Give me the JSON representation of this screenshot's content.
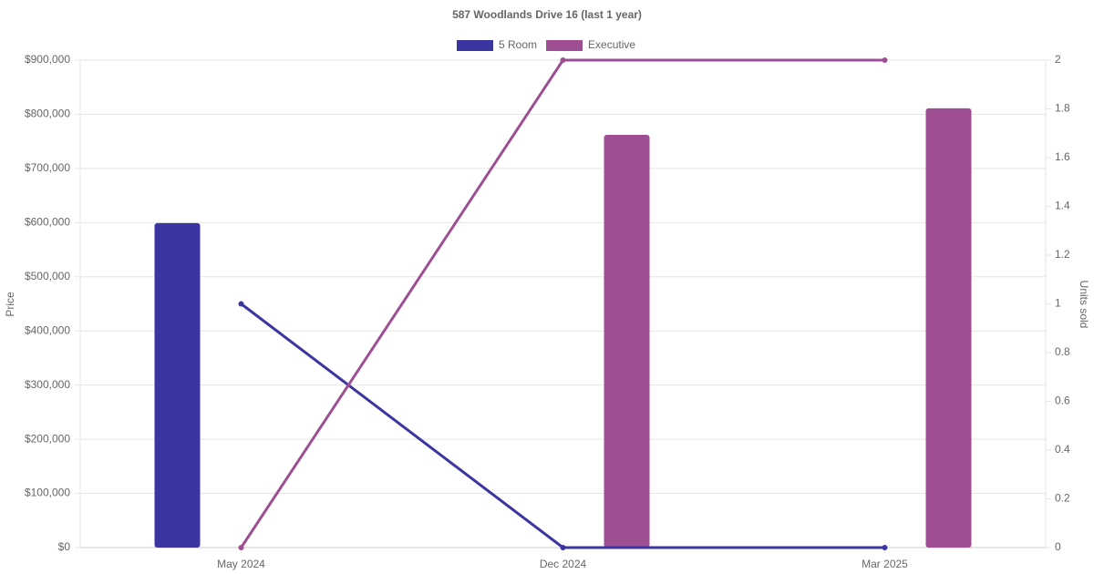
{
  "chart_data": {
    "type": "bar-line",
    "title": "587 Woodlands Drive 16 (last 1 year)",
    "y_label": "Price",
    "y2_label": "Units sold",
    "categories": [
      "May 2024",
      "Dec 2024",
      "Mar 2025"
    ],
    "series": [
      {
        "name": "5 Room",
        "color": "#3a35a0",
        "values": [
          599000,
          null,
          null
        ],
        "units_sold": [
          1,
          0,
          0
        ]
      },
      {
        "name": "Executive",
        "color": "#9e4f94",
        "values": [
          null,
          762000,
          811000
        ],
        "units_sold": [
          0,
          2,
          2
        ]
      }
    ],
    "ylim": [
      0,
      900000
    ],
    "yticks": [
      {
        "value": 0,
        "label": "$0"
      },
      {
        "value": 100000,
        "label": "$100,000"
      },
      {
        "value": 200000,
        "label": "$200,000"
      },
      {
        "value": 300000,
        "label": "$300,000"
      },
      {
        "value": 400000,
        "label": "$400,000"
      },
      {
        "value": 500000,
        "label": "$500,000"
      },
      {
        "value": 600000,
        "label": "$600,000"
      },
      {
        "value": 700000,
        "label": "$700,000"
      },
      {
        "value": 800000,
        "label": "$800,000"
      },
      {
        "value": 900000,
        "label": "$900,000"
      }
    ],
    "y2lim": [
      0,
      2
    ],
    "y2ticks": [
      0,
      0.2,
      0.4,
      0.6,
      0.8,
      1,
      1.2,
      1.4,
      1.6,
      1.8,
      2
    ],
    "grid": true,
    "legend": "top"
  }
}
